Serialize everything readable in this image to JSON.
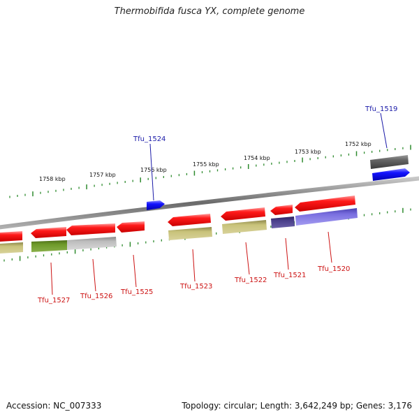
{
  "title": "Thermobifida fusca YX, complete genome",
  "footer": {
    "accession": "Accession: NC_007333",
    "summary": "Topology: circular; Length: 3,642,249 bp; Genes: 3,176"
  },
  "scale_labels": [
    {
      "text": "1758 kbp"
    },
    {
      "text": "1757 kbp"
    },
    {
      "text": "1756 kbp"
    },
    {
      "text": "1755 kbp"
    },
    {
      "text": "1754 kbp"
    },
    {
      "text": "1753 kbp"
    },
    {
      "text": "1752 kbp"
    }
  ],
  "gene_labels": {
    "forward": [
      {
        "name": "Tfu_1524",
        "color": "#1a1aa8"
      },
      {
        "name": "Tfu_1519",
        "color": "#1a1aa8"
      }
    ],
    "reverse": [
      {
        "name": "Tfu_1527",
        "color": "#cc1111"
      },
      {
        "name": "Tfu_1526",
        "color": "#cc1111"
      },
      {
        "name": "Tfu_1525",
        "color": "#cc1111"
      },
      {
        "name": "Tfu_1523",
        "color": "#cc1111"
      },
      {
        "name": "Tfu_1522",
        "color": "#cc1111"
      },
      {
        "name": "Tfu_1521",
        "color": "#cc1111"
      },
      {
        "name": "Tfu_1520",
        "color": "#cc1111"
      }
    ]
  },
  "colors": {
    "backbone": "#8a8a8a",
    "tick": "#2e8b2e",
    "cds": "#ff1a1a",
    "forward_gene": "#1414ff",
    "khaki": "#c8c27a",
    "olive": "#6e9a2a",
    "grey": "#bdbdbd",
    "dark_grey": "#666666",
    "indigo": "#4a3f8a",
    "lavender": "#7a6fe0"
  }
}
